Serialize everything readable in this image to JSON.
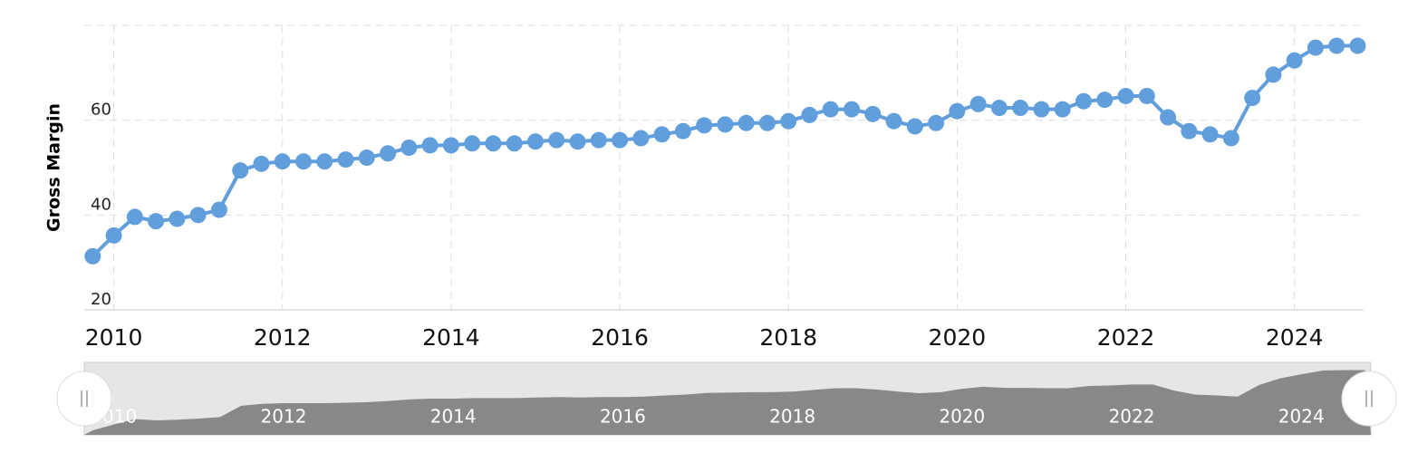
{
  "chart_data": {
    "type": "line",
    "y_label": "Gross Margin",
    "x": [
      2009.75,
      2010,
      2010.25,
      2010.5,
      2010.75,
      2011,
      2011.25,
      2011.5,
      2011.75,
      2012,
      2012.25,
      2012.5,
      2012.75,
      2013,
      2013.25,
      2013.5,
      2013.75,
      2014,
      2014.25,
      2014.5,
      2014.75,
      2015,
      2015.25,
      2015.5,
      2015.75,
      2016,
      2016.25,
      2016.5,
      2016.75,
      2017,
      2017.25,
      2017.5,
      2017.75,
      2018,
      2018.25,
      2018.5,
      2018.75,
      2019,
      2019.25,
      2019.5,
      2019.75,
      2020,
      2020.25,
      2020.5,
      2020.75,
      2021,
      2021.25,
      2021.5,
      2021.75,
      2022,
      2022.25,
      2022.5,
      2022.75,
      2023,
      2023.25,
      2023.5,
      2023.75,
      2024,
      2024.25,
      2024.5,
      2024.75
    ],
    "series": [
      {
        "color": "#619fdc",
        "values": [
          31.3,
          35.7,
          39.6,
          38.7,
          39.2,
          40.0,
          41.1,
          49.4,
          50.8,
          51.3,
          51.3,
          51.3,
          51.7,
          52.1,
          53.0,
          54.2,
          54.7,
          54.7,
          55.1,
          55.1,
          55.1,
          55.5,
          55.8,
          55.5,
          55.8,
          55.8,
          56.2,
          57.0,
          57.7,
          58.9,
          59.1,
          59.4,
          59.4,
          59.8,
          61.1,
          62.3,
          62.3,
          61.3,
          59.8,
          58.7,
          59.4,
          61.9,
          63.4,
          62.6,
          62.6,
          62.3,
          62.3,
          64.0,
          64.3,
          65.1,
          65.1,
          60.6,
          57.7,
          57.0,
          56.2,
          64.7,
          69.6,
          72.6,
          75.3,
          75.7,
          75.7
        ]
      }
    ],
    "xlim": [
      2009.65,
      2024.82
    ],
    "xticks": [
      2010,
      2012,
      2014,
      2016,
      2018,
      2020,
      2022,
      2024
    ],
    "ylim": [
      20,
      80
    ],
    "yticks": [
      20,
      40,
      60
    ],
    "grid": true
  }
}
